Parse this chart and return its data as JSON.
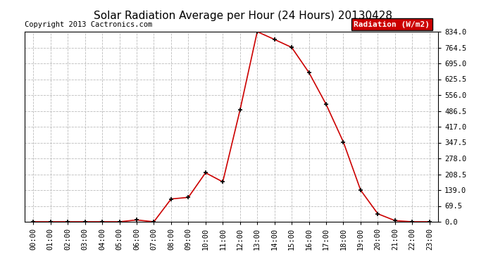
{
  "title": "Solar Radiation Average per Hour (24 Hours) 20130428",
  "copyright": "Copyright 2013 Cactronics.com",
  "legend_label": "Radiation (W/m2)",
  "hours": [
    "00:00",
    "01:00",
    "02:00",
    "03:00",
    "04:00",
    "05:00",
    "06:00",
    "07:00",
    "08:00",
    "09:00",
    "10:00",
    "11:00",
    "12:00",
    "13:00",
    "14:00",
    "15:00",
    "16:00",
    "17:00",
    "18:00",
    "19:00",
    "20:00",
    "21:00",
    "22:00",
    "23:00"
  ],
  "values": [
    0,
    0,
    0,
    0,
    0,
    0,
    8,
    0,
    100,
    107,
    215,
    175,
    490,
    834,
    800,
    765,
    655,
    515,
    350,
    139,
    35,
    5,
    0,
    0
  ],
  "line_color": "#cc0000",
  "marker_color": "#000000",
  "background_color": "#ffffff",
  "grid_color": "#bbbbbb",
  "ylim": [
    0,
    834
  ],
  "yticks": [
    0.0,
    69.5,
    139.0,
    208.5,
    278.0,
    347.5,
    417.0,
    486.5,
    556.0,
    625.5,
    695.0,
    764.5,
    834.0
  ],
  "title_fontsize": 11,
  "copyright_fontsize": 7.5,
  "legend_fontsize": 8,
  "tick_fontsize": 7.5
}
